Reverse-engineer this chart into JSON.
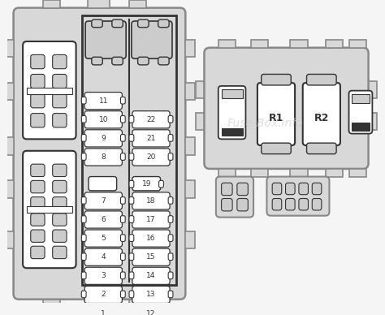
{
  "bg": "#f5f5f5",
  "box_fill": "#d8d8d8",
  "outline": "#888888",
  "dark": "#333333",
  "white": "#ffffff",
  "light": "#cccccc",
  "watermark": "Fuse-Box.info",
  "wm_color": "#c8c8c8"
}
